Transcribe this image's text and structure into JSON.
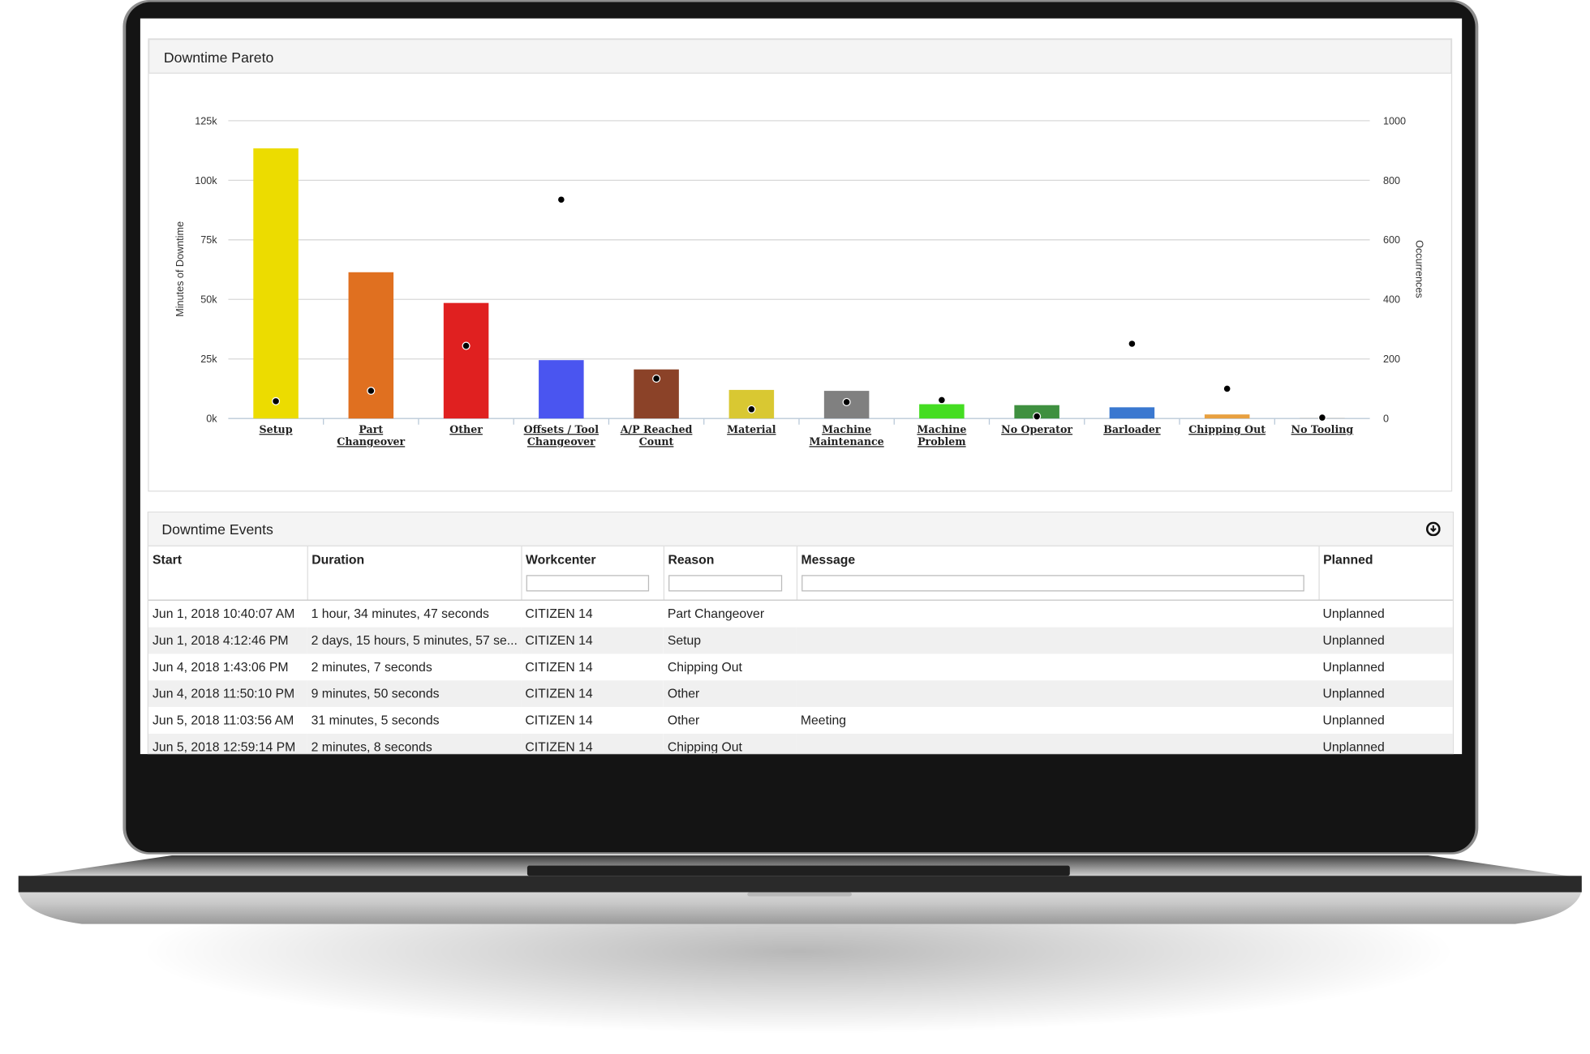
{
  "chart_data": {
    "type": "pareto",
    "title": "Downtime Pareto",
    "y_label": "Minutes of Downtime",
    "y2_label": "Occurrences",
    "categories": [
      "Setup",
      "Part Changeover",
      "Other",
      "Offsets / Tool Changeover",
      "A/P Reached Count",
      "Material",
      "Machine Maintenance",
      "Machine Problem",
      "No Operator",
      "Barloader",
      "Chipping Out",
      "No Tooling"
    ],
    "series": [
      {
        "colors": [
          "#ecdc00",
          "#e07020",
          "#e02020",
          "#4a55f0",
          "#8b4228",
          "#d9c832",
          "#808080",
          "#44dd22",
          "#3f9040",
          "#3a78d0",
          "#e8a040",
          "#c8c8c8"
        ],
        "values": [
          113400,
          61400,
          48500,
          24500,
          20600,
          12000,
          11600,
          6000,
          5600,
          4700,
          1700,
          300
        ]
      },
      {
        "axis": "y2",
        "color": "#000000",
        "values": [
          58,
          93,
          244,
          735,
          134,
          31,
          55,
          62,
          7,
          251,
          100,
          3
        ]
      }
    ],
    "ylim": [
      0,
      125000
    ],
    "yticks": [
      {
        "value": 0,
        "label": "0k"
      },
      {
        "value": 25000,
        "label": "25k"
      },
      {
        "value": 50000,
        "label": "50k"
      },
      {
        "value": 75000,
        "label": "75k"
      },
      {
        "value": 100000,
        "label": "100k"
      },
      {
        "value": 125000,
        "label": "125k"
      }
    ],
    "y2lim": [
      0,
      1000
    ],
    "y2ticks": [
      0,
      200,
      400,
      600,
      800,
      1000
    ],
    "grid": true
  },
  "events": {
    "title": "Downtime Events",
    "columns": [
      "Start",
      "Duration",
      "Workcenter",
      "Reason",
      "Message",
      "Planned"
    ],
    "rows": [
      [
        "Jun 1, 2018 10:40:07 AM",
        "1 hour, 34 minutes, 47 seconds",
        "CITIZEN 14",
        "Part Changeover",
        null,
        "Unplanned"
      ],
      [
        "Jun 1, 2018 4:12:46 PM",
        "2 days, 15 hours, 5 minutes, 57 se...",
        "CITIZEN 14",
        "Setup",
        null,
        "Unplanned"
      ],
      [
        "Jun 4, 2018 1:43:06 PM",
        "2 minutes, 7 seconds",
        "CITIZEN 14",
        "Chipping Out",
        null,
        "Unplanned"
      ],
      [
        "Jun 4, 2018 11:50:10 PM",
        "9 minutes, 50 seconds",
        "CITIZEN 14",
        "Other",
        null,
        "Unplanned"
      ],
      [
        "Jun 5, 2018 11:03:56 AM",
        "31 minutes, 5 seconds",
        "CITIZEN 14",
        "Other",
        "Meeting",
        "Unplanned"
      ],
      [
        "Jun 5, 2018 12:59:14 PM",
        "2 minutes, 8 seconds",
        "CITIZEN 14",
        "Chipping Out",
        null,
        "Unplanned"
      ]
    ]
  }
}
